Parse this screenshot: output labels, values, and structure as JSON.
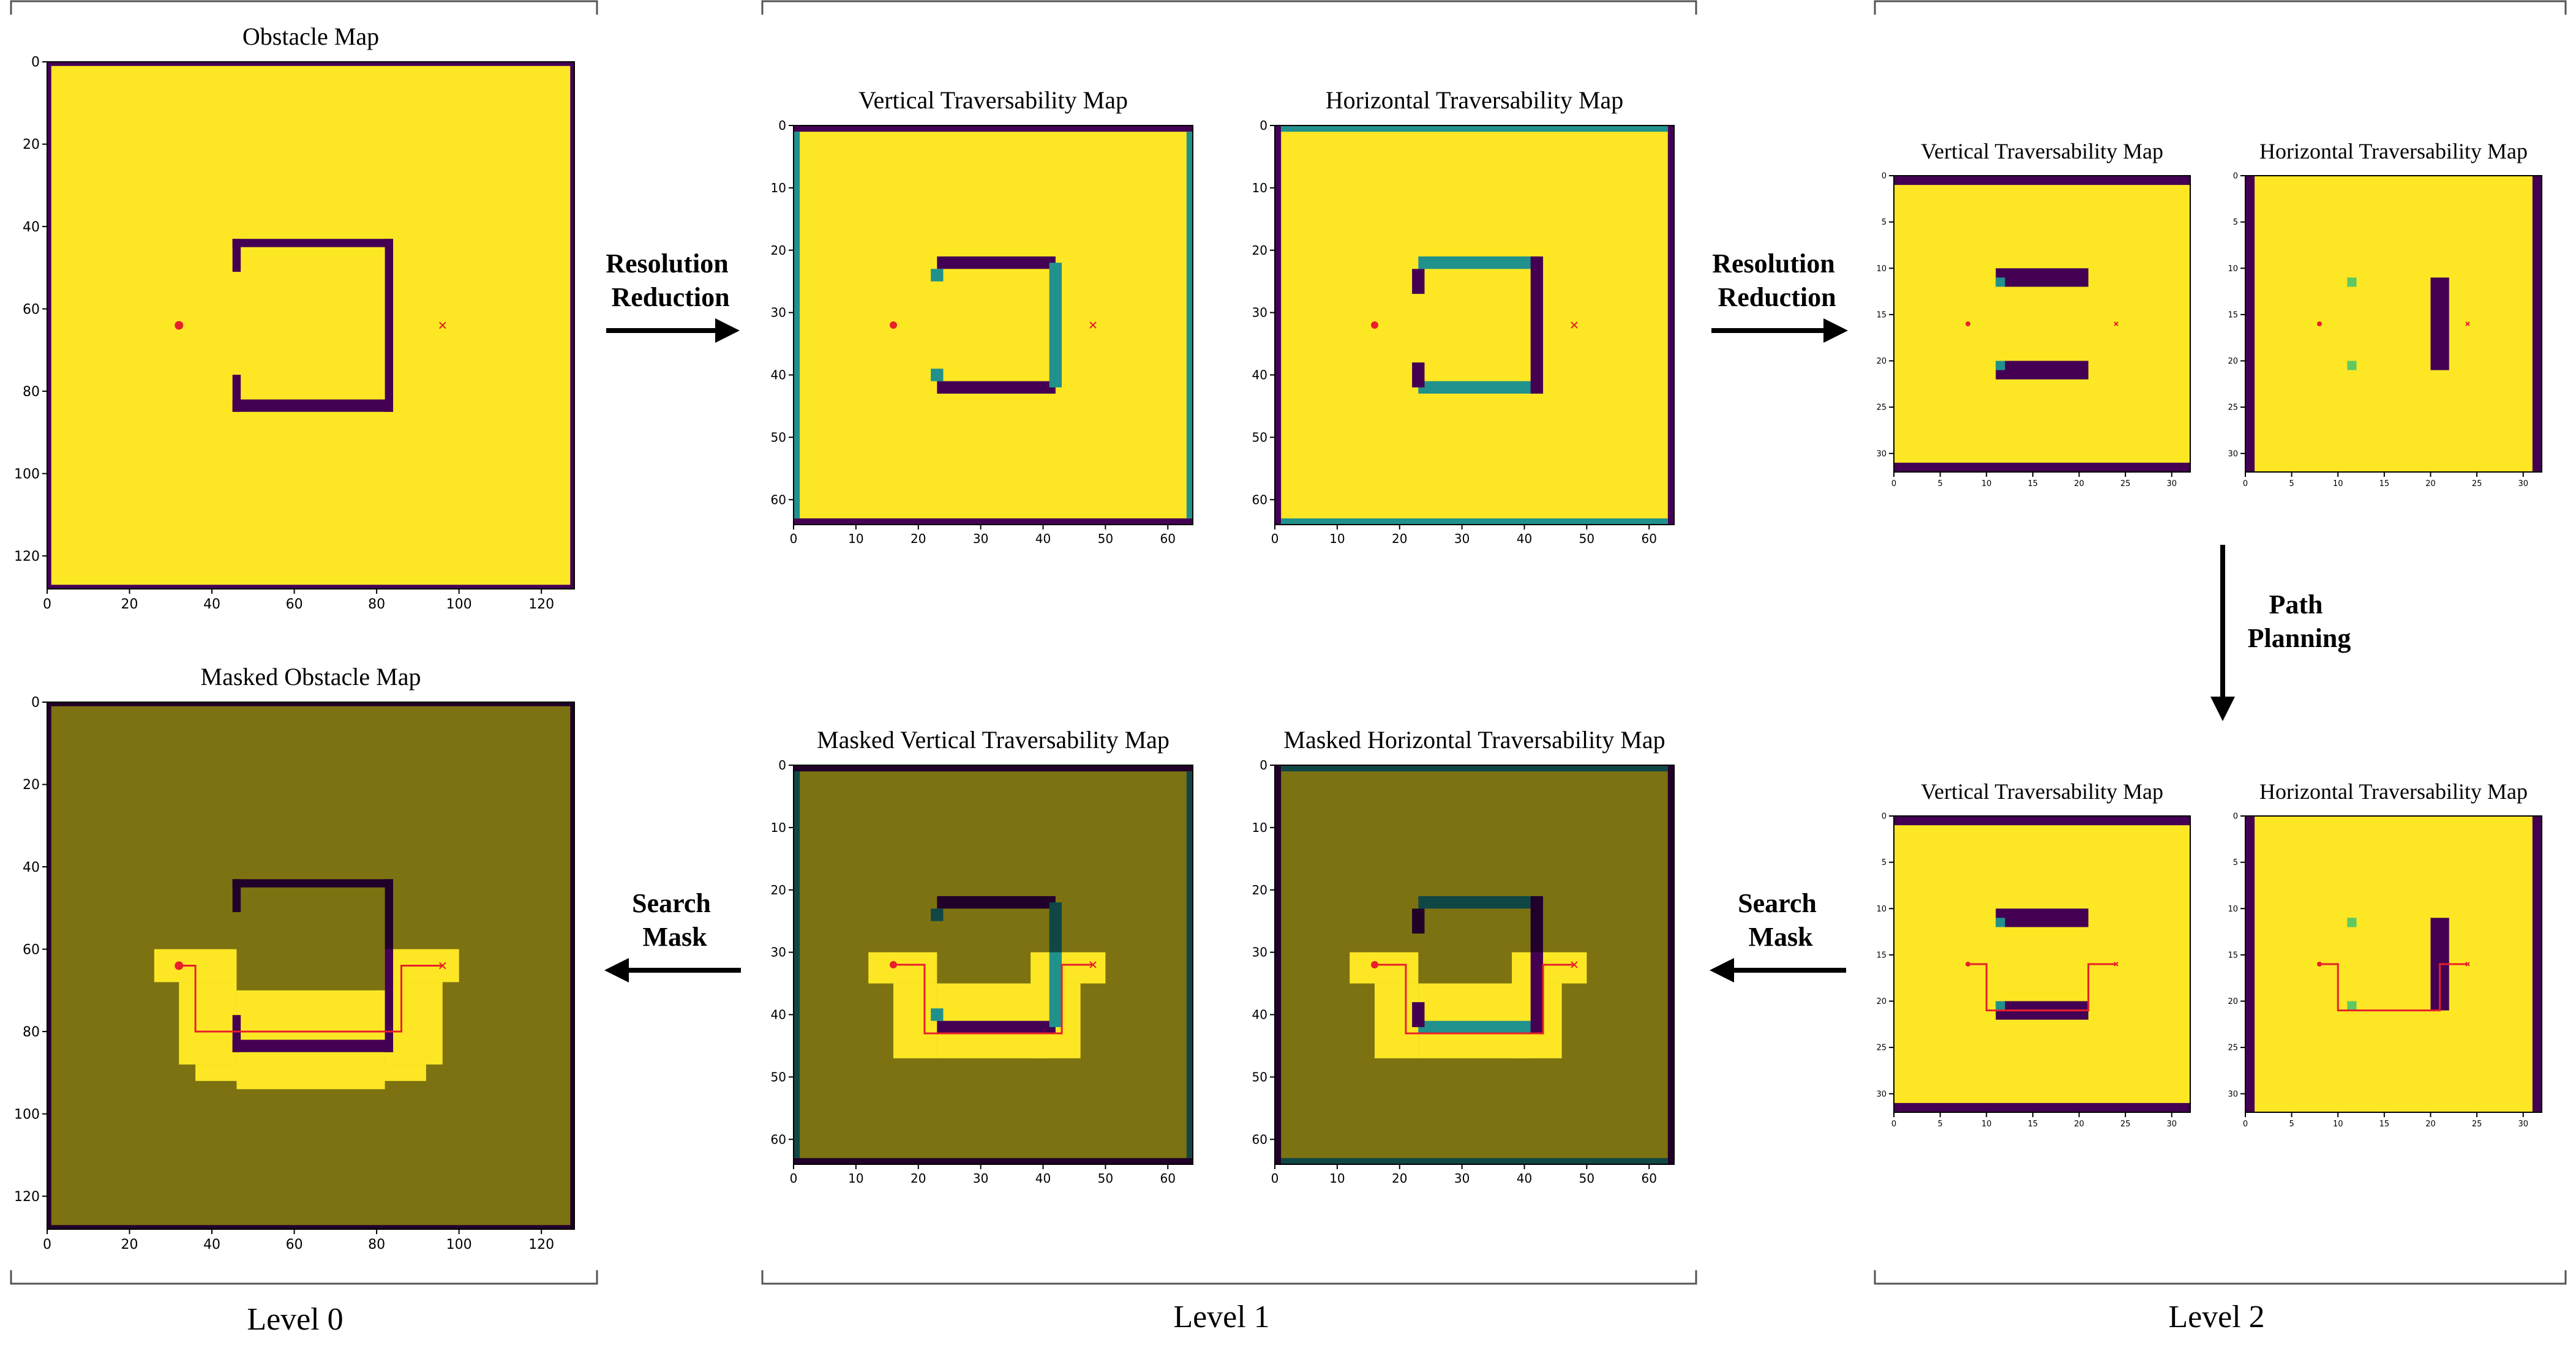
{
  "colors": {
    "free": "#fde725",
    "obstacle": "#440154",
    "partial": "#21918c",
    "light": "#5ec962",
    "path": "#e8202a",
    "mask_overlay": "#000000"
  },
  "levels": {
    "level0": "Level 0",
    "level1": "Level 1",
    "level2": "Level 2"
  },
  "arrows": {
    "res_reduction_1": [
      "Resolution",
      "Reduction"
    ],
    "res_reduction_2": [
      "Resolution",
      "Reduction"
    ],
    "path_planning": [
      "Path",
      "Planning"
    ],
    "search_mask_1": [
      "Search",
      "Mask"
    ],
    "search_mask_2": [
      "Search",
      "Mask"
    ]
  },
  "panels": {
    "obstacle": {
      "title": "Obstacle Map",
      "size": 128,
      "xticks": [
        0,
        20,
        40,
        60,
        80,
        100,
        120
      ],
      "yticks": [
        0,
        20,
        40,
        60,
        80,
        100,
        120
      ]
    },
    "v1": {
      "title": "Vertical Traversability Map",
      "size": 64,
      "xticks": [
        0,
        10,
        20,
        30,
        40,
        50,
        60
      ],
      "yticks": [
        0,
        10,
        20,
        30,
        40,
        50,
        60
      ]
    },
    "h1": {
      "title": "Horizontal Traversability Map",
      "size": 64,
      "xticks": [
        0,
        10,
        20,
        30,
        40,
        50,
        60
      ],
      "yticks": [
        0,
        10,
        20,
        30,
        40,
        50,
        60
      ]
    },
    "v2": {
      "title": "Vertical Traversability Map",
      "size": 32,
      "xticks": [
        0,
        5,
        10,
        15,
        20,
        25,
        30
      ],
      "yticks": [
        0,
        5,
        10,
        15,
        20,
        25,
        30
      ]
    },
    "h2": {
      "title": "Horizontal Traversability Map",
      "size": 32,
      "xticks": [
        0,
        5,
        10,
        15,
        20,
        25,
        30
      ],
      "yticks": [
        0,
        5,
        10,
        15,
        20,
        25,
        30
      ]
    },
    "v2p": {
      "title": "Vertical Traversability Map",
      "size": 32,
      "xticks": [
        0,
        5,
        10,
        15,
        20,
        25,
        30
      ],
      "yticks": [
        0,
        5,
        10,
        15,
        20,
        25,
        30
      ]
    },
    "h2p": {
      "title": "Horizontal Traversability Map",
      "size": 32,
      "xticks": [
        0,
        5,
        10,
        15,
        20,
        25,
        30
      ],
      "yticks": [
        0,
        5,
        10,
        15,
        20,
        25,
        30
      ]
    },
    "mv1": {
      "title": "Masked Vertical Traversability Map",
      "size": 64,
      "xticks": [
        0,
        10,
        20,
        30,
        40,
        50,
        60
      ],
      "yticks": [
        0,
        10,
        20,
        30,
        40,
        50,
        60
      ]
    },
    "mh1": {
      "title": "Masked Horizontal Traversability Map",
      "size": 64,
      "xticks": [
        0,
        10,
        20,
        30,
        40,
        50,
        60
      ],
      "yticks": [
        0,
        10,
        20,
        30,
        40,
        50,
        60
      ]
    },
    "mobs": {
      "title": "Masked Obstacle Map",
      "size": 128,
      "xticks": [
        0,
        20,
        40,
        60,
        80,
        100,
        120
      ],
      "yticks": [
        0,
        20,
        40,
        60,
        80,
        100,
        120
      ]
    }
  },
  "grid": {
    "level0_walls": [
      [
        45,
        43,
        84,
        45
      ],
      [
        45,
        43,
        47,
        51
      ],
      [
        45,
        76,
        47,
        85
      ],
      [
        82,
        43,
        84,
        85
      ],
      [
        45,
        82,
        84,
        85
      ]
    ],
    "start_l0": [
      32,
      64
    ],
    "goal_l0": [
      96,
      64
    ],
    "start_l1": [
      16,
      32
    ],
    "goal_l1": [
      48,
      32
    ],
    "start_l2": [
      8,
      16
    ],
    "goal_l2": [
      24,
      16
    ],
    "path_l0": [
      [
        32,
        64
      ],
      [
        36,
        64
      ],
      [
        36,
        80
      ],
      [
        86,
        80
      ],
      [
        86,
        64
      ],
      [
        96,
        64
      ]
    ],
    "path_l1": [
      [
        16,
        32
      ],
      [
        21,
        32
      ],
      [
        21,
        43
      ],
      [
        43,
        43
      ],
      [
        43,
        32
      ],
      [
        48,
        32
      ]
    ],
    "path_l2": [
      [
        8,
        16
      ],
      [
        10,
        16
      ],
      [
        10,
        21
      ],
      [
        21,
        21
      ],
      [
        21,
        16
      ],
      [
        24,
        16
      ]
    ],
    "mask_l0": [
      [
        26,
        60,
        46,
        68
      ],
      [
        32,
        68,
        46,
        88
      ],
      [
        46,
        70,
        82,
        94
      ],
      [
        82,
        60,
        100,
        68
      ],
      [
        82,
        68,
        96,
        88
      ],
      [
        36,
        88,
        92,
        92
      ]
    ],
    "mask_l1": [
      [
        12,
        30,
        23,
        35
      ],
      [
        16,
        35,
        23,
        47
      ],
      [
        23,
        35,
        41,
        47
      ],
      [
        38,
        30,
        50,
        35
      ],
      [
        38,
        35,
        46,
        47
      ]
    ]
  }
}
